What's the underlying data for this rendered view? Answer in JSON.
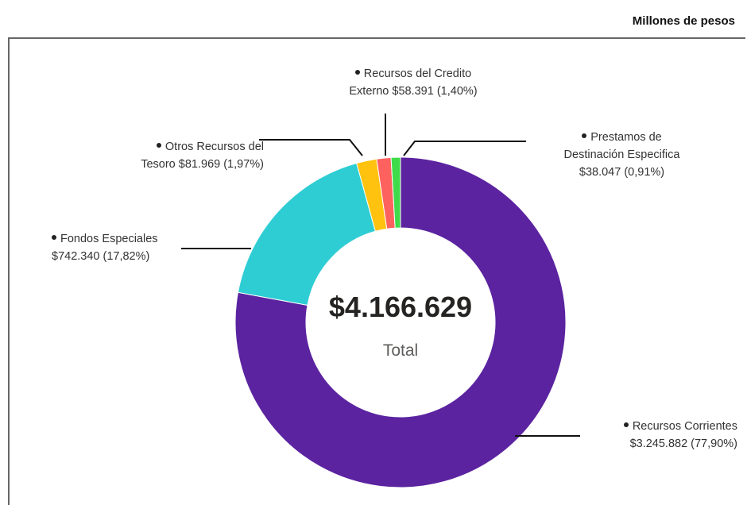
{
  "chart_data": {
    "type": "donut",
    "header": "Millones de pesos",
    "total": {
      "value": 4166629,
      "label": "$4.166.629"
    },
    "total_label": "Total",
    "categories": [
      "Recursos Corrientes",
      "Fondos Especiales",
      "Otros Recursos del Tesoro",
      "Recursos del Credito Externo",
      "Prestamos de Destinación Especifica"
    ],
    "values": [
      3245882,
      742340,
      81969,
      58391,
      38047
    ],
    "value_labels": [
      "$3.245.882 (77,90%)",
      "$742.340 (17,82%)",
      "$81.969 (1,97%)",
      "$58.391 (1,40%)",
      "$38.047 (0,91%)"
    ],
    "colors": [
      "#5b23a0",
      "#2ecdd4",
      "#ffc20e",
      "#fd625e",
      "#3fdb4a"
    ]
  }
}
